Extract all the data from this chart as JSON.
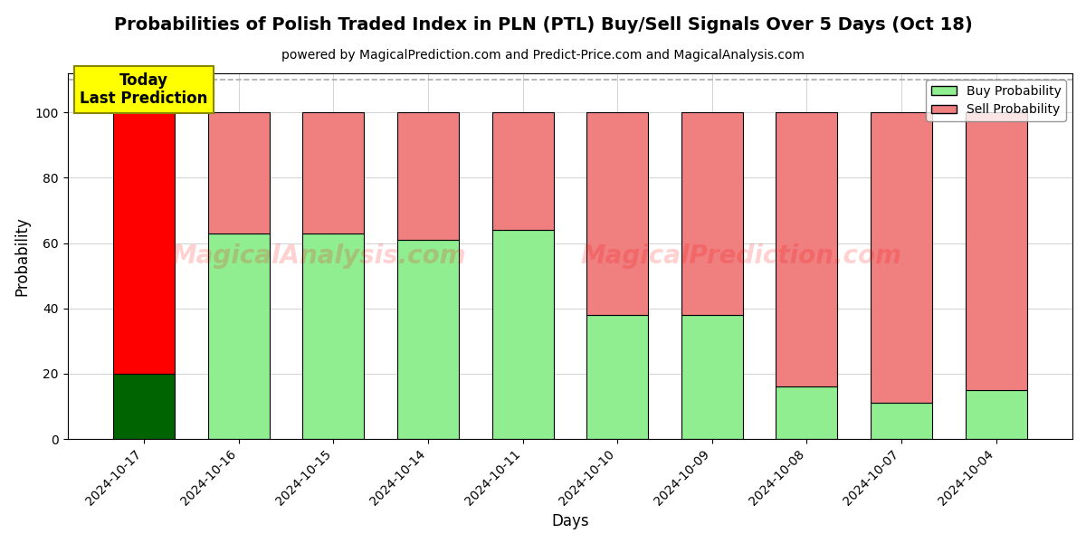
{
  "title": "Probabilities of Polish Traded Index in PLN (PTL) Buy/Sell Signals Over 5 Days (Oct 18)",
  "subtitle": "powered by MagicalPrediction.com and Predict-Price.com and MagicalAnalysis.com",
  "xlabel": "Days",
  "ylabel": "Probability",
  "dates": [
    "2024-10-17",
    "2024-10-16",
    "2024-10-15",
    "2024-10-14",
    "2024-10-11",
    "2024-10-10",
    "2024-10-09",
    "2024-10-08",
    "2024-10-07",
    "2024-10-04"
  ],
  "buy_values": [
    20,
    63,
    63,
    61,
    64,
    38,
    38,
    16,
    11,
    15
  ],
  "sell_values": [
    80,
    37,
    37,
    39,
    36,
    62,
    62,
    84,
    89,
    85
  ],
  "today_buy_color": "#006400",
  "today_sell_color": "#ff0000",
  "buy_color": "#90ee90",
  "sell_color": "#f08080",
  "bar_edge_color": "black",
  "bar_edge_width": 0.8,
  "ylim": [
    0,
    112
  ],
  "dashed_line_y": 110,
  "dashed_line_color": "#aaaaaa",
  "watermark_text1": "MagicalAnalysis.com",
  "watermark_text2": "MagicalPrediction.com",
  "annotation_text": "Today\nLast Prediction",
  "annotation_bg": "#ffff00",
  "annotation_fontsize": 12,
  "title_fontsize": 14,
  "subtitle_fontsize": 10,
  "axis_label_fontsize": 12,
  "tick_fontsize": 10,
  "legend_fontsize": 10,
  "figsize": [
    12,
    6
  ],
  "dpi": 100
}
